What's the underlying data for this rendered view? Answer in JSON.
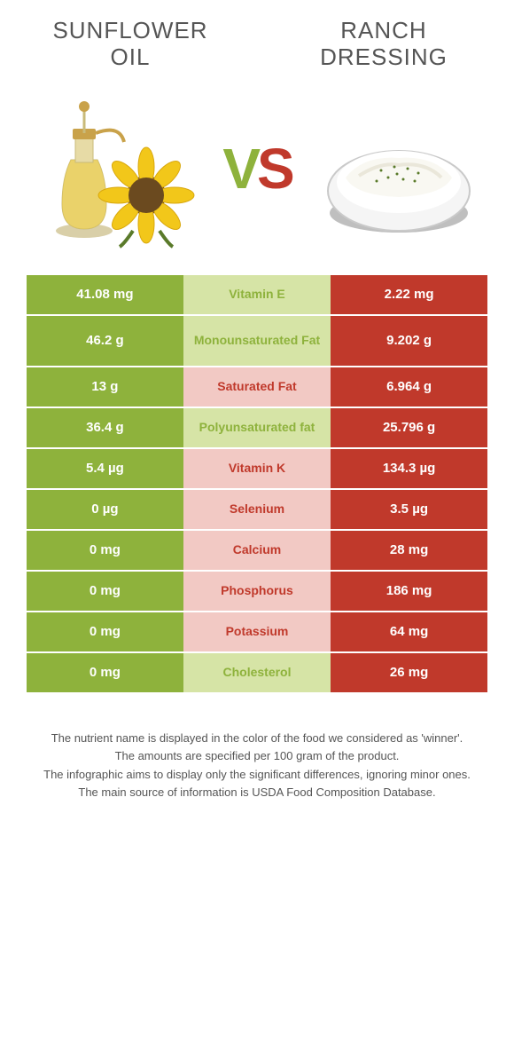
{
  "left_food": {
    "title_line1": "Sunflower",
    "title_line2": "oil"
  },
  "right_food": {
    "title_line1": "Ranch",
    "title_line2": "dressing"
  },
  "vs": {
    "v": "V",
    "s": "S"
  },
  "colors": {
    "left": "#8eb23c",
    "right": "#c0392b",
    "mid_left": "#d6e4a6",
    "mid_right": "#f2c9c4"
  },
  "rows": [
    {
      "left": "41.08 mg",
      "label": "Vitamin E",
      "right": "2.22 mg",
      "winner": "left"
    },
    {
      "left": "46.2 g",
      "label": "Monounsaturated Fat",
      "right": "9.202 g",
      "winner": "left",
      "tall": true
    },
    {
      "left": "13 g",
      "label": "Saturated Fat",
      "right": "6.964 g",
      "winner": "right"
    },
    {
      "left": "36.4 g",
      "label": "Polyunsaturated fat",
      "right": "25.796 g",
      "winner": "left"
    },
    {
      "left": "5.4 µg",
      "label": "Vitamin K",
      "right": "134.3 µg",
      "winner": "right"
    },
    {
      "left": "0 µg",
      "label": "Selenium",
      "right": "3.5 µg",
      "winner": "right"
    },
    {
      "left": "0 mg",
      "label": "Calcium",
      "right": "28 mg",
      "winner": "right"
    },
    {
      "left": "0 mg",
      "label": "Phosphorus",
      "right": "186 mg",
      "winner": "right"
    },
    {
      "left": "0 mg",
      "label": "Potassium",
      "right": "64 mg",
      "winner": "right"
    },
    {
      "left": "0 mg",
      "label": "Cholesterol",
      "right": "26 mg",
      "winner": "left"
    }
  ],
  "footer": {
    "line1": "The nutrient name is displayed in the color of the food we considered as 'winner'.",
    "line2": "The amounts are specified per 100 gram of the product.",
    "line3": "The infographic aims to display only the significant differences, ignoring minor ones.",
    "line4": "The main source of information is USDA Food Composition Database."
  }
}
